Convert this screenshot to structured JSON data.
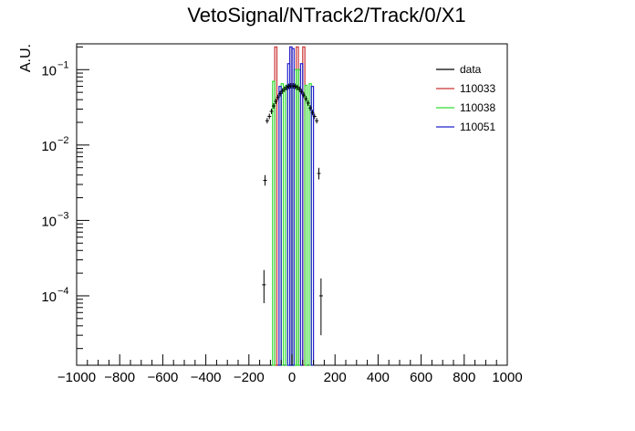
{
  "chart_data": {
    "type": "histogram",
    "title": "VetoSignal/NTrack2/Track/0/X1",
    "xlabel": "",
    "ylabel": "A.U.",
    "xlim": [
      -1000,
      1000
    ],
    "ylim": [
      1.2e-05,
      0.22
    ],
    "yscale": "log",
    "grid": false,
    "legend_position": "top-right",
    "x_ticks": [
      {
        "v": -1000,
        "label": "−1000"
      },
      {
        "v": -800,
        "label": "−800"
      },
      {
        "v": -600,
        "label": "−600"
      },
      {
        "v": -400,
        "label": "−400"
      },
      {
        "v": -200,
        "label": "−200"
      },
      {
        "v": 0,
        "label": "0"
      },
      {
        "v": 200,
        "label": "200"
      },
      {
        "v": 400,
        "label": "400"
      },
      {
        "v": 600,
        "label": "600"
      },
      {
        "v": 800,
        "label": "800"
      },
      {
        "v": 1000,
        "label": "1000"
      }
    ],
    "y_ticks": [
      {
        "v": 0.0001,
        "base": "10",
        "exp": "−4"
      },
      {
        "v": 0.001,
        "base": "10",
        "exp": "−3"
      },
      {
        "v": 0.01,
        "base": "10",
        "exp": "−2"
      },
      {
        "v": 0.1,
        "base": "10",
        "exp": "−1"
      }
    ],
    "series": [
      {
        "name": "data",
        "color": "#000000",
        "kind": "points",
        "points": [
          {
            "x": -130,
            "y": 0.00014,
            "lo": 8e-05,
            "hi": 0.00022
          },
          {
            "x": -125,
            "y": 0.0034,
            "lo": 0.0029,
            "hi": 0.004
          },
          {
            "x": -115,
            "y": 0.021
          },
          {
            "x": -105,
            "y": 0.024
          },
          {
            "x": -95,
            "y": 0.028
          },
          {
            "x": -85,
            "y": 0.033
          },
          {
            "x": -75,
            "y": 0.038
          },
          {
            "x": -65,
            "y": 0.043
          },
          {
            "x": -55,
            "y": 0.048
          },
          {
            "x": -45,
            "y": 0.052
          },
          {
            "x": -35,
            "y": 0.055
          },
          {
            "x": -25,
            "y": 0.058
          },
          {
            "x": -15,
            "y": 0.06
          },
          {
            "x": -5,
            "y": 0.061
          },
          {
            "x": 5,
            "y": 0.061
          },
          {
            "x": 15,
            "y": 0.06
          },
          {
            "x": 25,
            "y": 0.058
          },
          {
            "x": 35,
            "y": 0.055
          },
          {
            "x": 45,
            "y": 0.051
          },
          {
            "x": 55,
            "y": 0.046
          },
          {
            "x": 65,
            "y": 0.041
          },
          {
            "x": 75,
            "y": 0.036
          },
          {
            "x": 85,
            "y": 0.031
          },
          {
            "x": 95,
            "y": 0.027
          },
          {
            "x": 105,
            "y": 0.024
          },
          {
            "x": 115,
            "y": 0.021
          },
          {
            "x": 125,
            "y": 0.0042,
            "lo": 0.0035,
            "hi": 0.005
          },
          {
            "x": 135,
            "y": 0.0001,
            "lo": 3e-05,
            "hi": 0.00017
          }
        ]
      },
      {
        "name": "110033",
        "color": "#cc3333",
        "kind": "bars",
        "bins": [
          {
            "x0": -80,
            "x1": -70,
            "y": 0.2
          },
          {
            "x0": -10,
            "x1": 0,
            "y": 0.2
          },
          {
            "x0": 20,
            "x1": 30,
            "y": 0.2
          },
          {
            "x0": 50,
            "x1": 60,
            "y": 0.2
          }
        ]
      },
      {
        "name": "110038",
        "color": "#33dd33",
        "kind": "bars",
        "bins": [
          {
            "x0": -90,
            "x1": -80,
            "y": 0.07
          },
          {
            "x0": -50,
            "x1": -40,
            "y": 0.065
          },
          {
            "x0": -30,
            "x1": -20,
            "y": 0.062
          },
          {
            "x0": -10,
            "x1": 0,
            "y": 0.06
          },
          {
            "x0": 0,
            "x1": 10,
            "y": 0.06
          },
          {
            "x0": 10,
            "x1": 20,
            "y": 0.1
          },
          {
            "x0": 20,
            "x1": 30,
            "y": 0.1
          },
          {
            "x0": 30,
            "x1": 40,
            "y": 0.1
          },
          {
            "x0": 60,
            "x1": 70,
            "y": 0.062
          },
          {
            "x0": 80,
            "x1": 90,
            "y": 0.065
          }
        ]
      },
      {
        "name": "110051",
        "color": "#2222cc",
        "kind": "bars",
        "bins": [
          {
            "x0": -60,
            "x1": -50,
            "y": 0.06
          },
          {
            "x0": -20,
            "x1": -10,
            "y": 0.12
          },
          {
            "x0": -10,
            "x1": 0,
            "y": 0.2
          },
          {
            "x0": 0,
            "x1": 10,
            "y": 0.19
          },
          {
            "x0": 40,
            "x1": 50,
            "y": 0.12
          },
          {
            "x0": 90,
            "x1": 100,
            "y": 0.06
          }
        ]
      }
    ]
  }
}
